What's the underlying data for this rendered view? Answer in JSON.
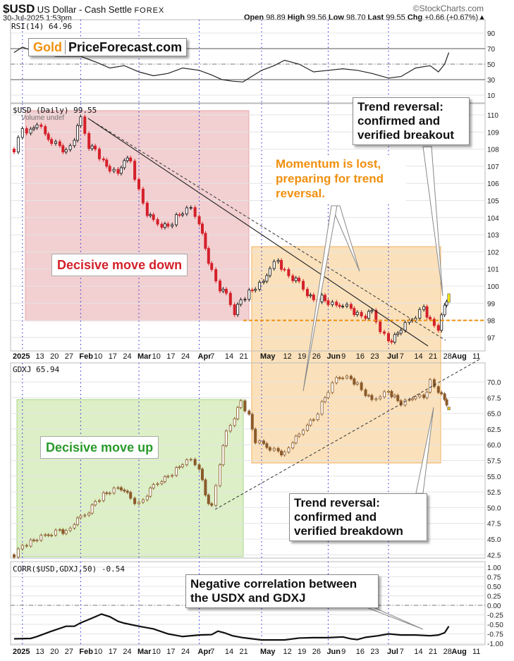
{
  "header": {
    "symbol": "$USD",
    "name": "US Dollar - Cash Settle",
    "exchange": "FOREX",
    "date": "30-Jul-2025 1:53pm",
    "brand": "©StockCharts.com",
    "open_label": "Open",
    "open": "98.89",
    "high_label": "High",
    "high": "99.56",
    "low_label": "Low",
    "low": "98.70",
    "last_label": "Last",
    "last": "99.55",
    "chg_label": "Chg",
    "chg": "+0.66 (+0.67%)▲"
  },
  "logo": {
    "gold": "Gold",
    "rest": "PriceForecast.com"
  },
  "annotations": {
    "breakout": "Trend reversal: confirmed and verified breakout",
    "momentum": "Momentum is lost, preparing for trend reversal.",
    "move_down": "Decisive move down",
    "move_up": "Decisive move up",
    "breakdown": "Trend reversal: confirmed and verified breakdown",
    "correlation": "Negative correlation between the USDX and GDXJ"
  },
  "colors": {
    "down_usd": "#d4202a",
    "gdxj": "#8b5a2b",
    "red_zone": "#f2cfd0",
    "orange_zone": "#f9deb4",
    "green_zone": "#dcefc6",
    "orange_line": "#f0900f",
    "gold": "#f0900f"
  },
  "chart_data": [
    {
      "type": "line",
      "title": "RSI(14) 64.96",
      "legend": "RSI(14) 64.96",
      "yticks": [
        "90",
        "70",
        "50",
        "30",
        "10"
      ],
      "ylim": [
        0,
        100
      ],
      "x_days_since_jan2": [
        0,
        4,
        10,
        20,
        32,
        40,
        46,
        53,
        60,
        67,
        74,
        81,
        89,
        95,
        100,
        105,
        110,
        119,
        125,
        130,
        137,
        144,
        151,
        158,
        165,
        172,
        180,
        186,
        193,
        200,
        204,
        207,
        209
      ],
      "values": [
        65,
        72,
        66,
        60,
        60,
        52,
        45,
        48,
        40,
        35,
        38,
        45,
        42,
        36,
        30,
        28,
        27,
        42,
        48,
        55,
        50,
        40,
        42,
        44,
        42,
        38,
        32,
        34,
        45,
        48,
        40,
        50,
        65
      ]
    },
    {
      "type": "candlestick",
      "title": "$USD (Daily) 99.55",
      "legend": "$USD (Daily) 99.55",
      "sublegend": "Volume undef",
      "yticks": [
        "110",
        "109",
        "108",
        "107",
        "106",
        "105",
        "104",
        "103",
        "102",
        "101",
        "100",
        "99",
        "98",
        "97"
      ],
      "ylim": [
        96.3,
        110.5
      ],
      "x_days_since_jan2": [
        0,
        4,
        8,
        11,
        15,
        18,
        22,
        25,
        29,
        32,
        36,
        39,
        43,
        46,
        50,
        53,
        56,
        60,
        64,
        67,
        71,
        74,
        78,
        81,
        85,
        89,
        92,
        95,
        99,
        102,
        106,
        109,
        113,
        116,
        120,
        123,
        127,
        130,
        134,
        137,
        141,
        144,
        148,
        151,
        155,
        158,
        162,
        165,
        169,
        172,
        176,
        180,
        183,
        186,
        190,
        193,
        197,
        200,
        204,
        207,
        209
      ],
      "close": [
        108.0,
        109.2,
        109.0,
        109.5,
        108.8,
        108.5,
        108.2,
        107.8,
        108.6,
        109.8,
        108.2,
        108.0,
        107.2,
        106.8,
        106.5,
        107.5,
        107.3,
        105.5,
        104.2,
        103.8,
        103.6,
        103.5,
        104.0,
        104.3,
        104.5,
        103.8,
        102.2,
        100.8,
        99.8,
        99.5,
        98.5,
        99.2,
        99.6,
        99.9,
        100.2,
        101.2,
        101.5,
        100.8,
        100.4,
        100.2,
        99.6,
        99.2,
        99.3,
        99.0,
        98.8,
        99.0,
        98.7,
        98.3,
        98.2,
        98.5,
        97.5,
        96.8,
        97.0,
        97.5,
        97.9,
        98.3,
        98.8,
        97.9,
        97.5,
        98.8,
        99.55
      ],
      "support_level": 98.0
    },
    {
      "type": "candlestick",
      "title": "GDXJ 65.94",
      "legend": "GDXJ 65.94",
      "yticks": [
        "70.0",
        "67.5",
        "65.0",
        "62.5",
        "60.0",
        "57.5",
        "55.0",
        "52.5",
        "50.0",
        "47.5",
        "45.0",
        "42.5"
      ],
      "ylim": [
        42,
        72.5
      ],
      "x_days_since_jan2": [
        0,
        4,
        8,
        11,
        15,
        18,
        22,
        25,
        29,
        32,
        36,
        39,
        43,
        46,
        50,
        53,
        56,
        60,
        64,
        67,
        71,
        74,
        78,
        81,
        85,
        89,
        92,
        95,
        99,
        102,
        106,
        109,
        113,
        116,
        120,
        123,
        127,
        130,
        134,
        137,
        141,
        144,
        148,
        151,
        155,
        158,
        162,
        165,
        169,
        172,
        176,
        180,
        183,
        186,
        190,
        193,
        197,
        200,
        204,
        207,
        209
      ],
      "close": [
        42.5,
        44.0,
        44.5,
        45.0,
        45.5,
        46.0,
        46.5,
        46.0,
        47.5,
        48.5,
        49.5,
        51.0,
        52.0,
        52.5,
        53.0,
        53.0,
        51.5,
        50.5,
        52.0,
        53.5,
        54.5,
        55.0,
        56.0,
        57.0,
        57.5,
        56.5,
        52.0,
        50.0,
        57.0,
        62.0,
        64.5,
        67.0,
        64.5,
        60.5,
        60.0,
        59.5,
        59.0,
        58.5,
        60.5,
        61.5,
        63.5,
        64.0,
        66.5,
        68.5,
        70.5,
        71.0,
        70.5,
        69.5,
        68.0,
        67.0,
        68.0,
        68.5,
        67.5,
        66.5,
        67.0,
        68.0,
        67.5,
        70.0,
        68.5,
        67.0,
        66.0
      ]
    },
    {
      "type": "line",
      "title": "CORR($USD,GDXJ,50) -0.54",
      "legend": "CORR($USD,GDXJ,50) -0.54",
      "yticks": [
        "1.00",
        "0.75",
        "0.50",
        "0.25",
        "0.00",
        "-0.25",
        "-0.50",
        "-0.75",
        "-1.00"
      ],
      "ylim": [
        -1.1,
        1.1
      ],
      "x_days_since_jan2": [
        0,
        8,
        11,
        18,
        25,
        29,
        32,
        36,
        39,
        42,
        46,
        50,
        53,
        60,
        67,
        74,
        81,
        89,
        95,
        98,
        101,
        105,
        110,
        119,
        130,
        137,
        144,
        151,
        158,
        162,
        165,
        169,
        175,
        180,
        186,
        193,
        200,
        204,
        207,
        209
      ],
      "values": [
        -0.88,
        -0.87,
        -0.82,
        -0.68,
        -0.55,
        -0.55,
        -0.46,
        -0.37,
        -0.3,
        -0.23,
        -0.3,
        -0.42,
        -0.47,
        -0.55,
        -0.62,
        -0.75,
        -0.82,
        -0.78,
        -0.77,
        -0.68,
        -0.72,
        -0.8,
        -0.85,
        -0.91,
        -0.91,
        -0.86,
        -0.85,
        -0.85,
        -0.83,
        -0.88,
        -0.9,
        -0.84,
        -0.8,
        -0.75,
        -0.78,
        -0.78,
        -0.8,
        -0.78,
        -0.72,
        -0.55
      ]
    }
  ],
  "x_axis": {
    "labels": [
      {
        "t": "2025",
        "d": 0,
        "b": true
      },
      {
        "t": "13",
        "d": 11
      },
      {
        "t": "20",
        "d": 18
      },
      {
        "t": "27",
        "d": 25
      },
      {
        "t": "Feb",
        "d": 32,
        "b": true
      },
      {
        "t": "10",
        "d": 39
      },
      {
        "t": "17",
        "d": 46
      },
      {
        "t": "24",
        "d": 53
      },
      {
        "t": "Mar",
        "d": 60,
        "b": true
      },
      {
        "t": "10",
        "d": 67
      },
      {
        "t": "17",
        "d": 74
      },
      {
        "t": "24",
        "d": 81
      },
      {
        "t": "Apr",
        "d": 89,
        "b": true
      },
      {
        "t": "7",
        "d": 95
      },
      {
        "t": "14",
        "d": 102
      },
      {
        "t": "21",
        "d": 109
      },
      {
        "t": "May",
        "d": 119,
        "b": true
      },
      {
        "t": "12",
        "d": 130
      },
      {
        "t": "19",
        "d": 137
      },
      {
        "t": "26",
        "d": 144
      },
      {
        "t": "Jun",
        "d": 151,
        "b": true
      },
      {
        "t": "9",
        "d": 158
      },
      {
        "t": "16",
        "d": 165
      },
      {
        "t": "23",
        "d": 172
      },
      {
        "t": "Jul",
        "d": 180,
        "b": true
      },
      {
        "t": "7",
        "d": 186
      },
      {
        "t": "14",
        "d": 193
      },
      {
        "t": "21",
        "d": 200
      },
      {
        "t": "28",
        "d": 207
      },
      {
        "t": "Aug",
        "d": 211,
        "b": true
      },
      {
        "t": "11",
        "d": 221
      }
    ],
    "month_lines_days": [
      4,
      32,
      60,
      89,
      119,
      151,
      180
    ]
  }
}
